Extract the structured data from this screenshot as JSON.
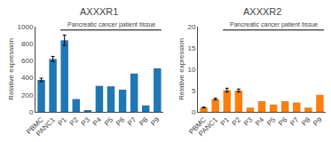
{
  "chart_data": [
    {
      "type": "bar",
      "title": "AXXXR1",
      "ylabel": "Relative expression",
      "annotation": "Pancreatic cancer patient tissue",
      "categories": [
        "PBMC",
        "PANC1",
        "P1",
        "P2",
        "P3",
        "P4",
        "P5",
        "P6",
        "P7",
        "P8",
        "P9"
      ],
      "values": [
        375,
        620,
        840,
        150,
        18,
        305,
        300,
        260,
        450,
        75,
        510
      ],
      "errors": [
        20,
        30,
        60,
        null,
        null,
        null,
        null,
        null,
        null,
        null,
        null
      ],
      "ylim": [
        0,
        1000
      ],
      "yticks": [
        0,
        200,
        400,
        600,
        800,
        1000
      ],
      "grid": false
    },
    {
      "type": "bar",
      "title": "AXXXR2",
      "ylabel": "Relative expression",
      "annotation": "Pancreatic cancer patient tissue",
      "categories": [
        "PBMC",
        "PANC1",
        "P1",
        "P2",
        "P3",
        "P4",
        "P5",
        "P6",
        "P7",
        "P8",
        "P9"
      ],
      "values": [
        1.0,
        3.0,
        5.1,
        5.0,
        1.0,
        2.5,
        1.7,
        2.5,
        2.2,
        1.0,
        4.0
      ],
      "errors": [
        0.1,
        0.2,
        0.45,
        0.35,
        null,
        null,
        null,
        null,
        null,
        null,
        null
      ],
      "ylim": [
        0,
        20
      ],
      "yticks": [
        0,
        5,
        10,
        15,
        20
      ],
      "grid": false
    }
  ]
}
